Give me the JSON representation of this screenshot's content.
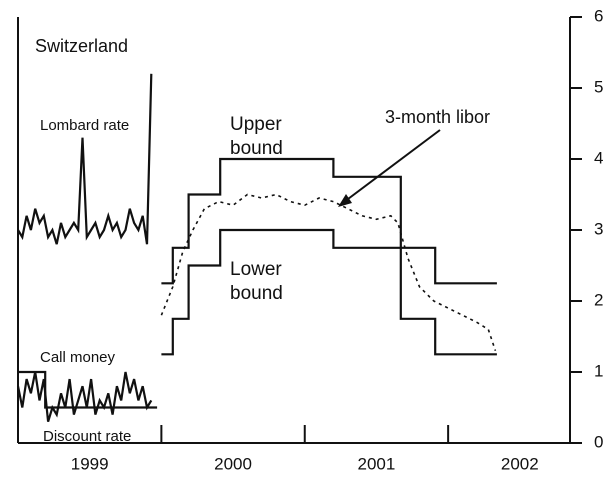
{
  "chart_data": {
    "type": "line",
    "xlim": [
      1999,
      2002.85
    ],
    "ylim": [
      0,
      6
    ],
    "yticks": [
      0,
      1,
      2,
      3,
      4,
      5,
      6
    ],
    "xticks": [
      {
        "value": 1999.5,
        "label": "1999"
      },
      {
        "value": 2000.5,
        "label": "2000"
      },
      {
        "value": 2001.5,
        "label": "2001"
      },
      {
        "value": 2002.5,
        "label": "2002"
      }
    ],
    "xminor": [
      2000,
      2001,
      2002
    ],
    "series": [
      {
        "color": "#111111",
        "dash": false,
        "x": [
          2000.0,
          2000.08,
          2000.08,
          2000.19,
          2000.19,
          2000.41,
          2000.41,
          2001.2,
          2001.2,
          2001.67,
          2001.67,
          2001.91,
          2001.91,
          2002.34
        ],
        "values": [
          2.25,
          2.25,
          2.75,
          2.75,
          3.5,
          3.5,
          4,
          4,
          3.75,
          3.75,
          2.75,
          2.75,
          2.25,
          2.25
        ]
      },
      {
        "color": "#111111",
        "dash": false,
        "x": [
          2000.0,
          2000.08,
          2000.08,
          2000.19,
          2000.19,
          2000.41,
          2000.41,
          2001.2,
          2001.2,
          2001.67,
          2001.67,
          2001.91,
          2001.91,
          2002.34
        ],
        "values": [
          1.25,
          1.25,
          1.75,
          1.75,
          2.5,
          2.5,
          3,
          3,
          2.75,
          2.75,
          1.75,
          1.75,
          1.25,
          1.25
        ]
      },
      {
        "color": "#111111",
        "dash": true,
        "x": [
          2000.0,
          2000.08,
          2000.15,
          2000.22,
          2000.3,
          2000.4,
          2000.5,
          2000.6,
          2000.7,
          2000.8,
          2000.9,
          2001.0,
          2001.1,
          2001.2,
          2001.3,
          2001.4,
          2001.5,
          2001.6,
          2001.65,
          2001.72,
          2001.8,
          2001.9,
          2002.0,
          2002.1,
          2002.2,
          2002.28,
          2002.33
        ],
        "values": [
          1.8,
          2.2,
          2.7,
          3.0,
          3.3,
          3.4,
          3.35,
          3.5,
          3.45,
          3.5,
          3.4,
          3.35,
          3.45,
          3.4,
          3.3,
          3.2,
          3.15,
          3.2,
          3.1,
          2.6,
          2.2,
          2.0,
          1.9,
          1.8,
          1.7,
          1.6,
          1.3
        ]
      },
      {
        "color": "#111111",
        "dash": false,
        "x": [
          1999.0,
          1999.03,
          1999.06,
          1999.09,
          1999.12,
          1999.15,
          1999.18,
          1999.21,
          1999.24,
          1999.27,
          1999.3,
          1999.33,
          1999.36,
          1999.39,
          1999.42,
          1999.45,
          1999.48,
          1999.51,
          1999.54,
          1999.57,
          1999.6,
          1999.63,
          1999.66,
          1999.69,
          1999.72,
          1999.75,
          1999.78,
          1999.81,
          1999.84,
          1999.87,
          1999.9,
          1999.93
        ],
        "values": [
          3.0,
          2.9,
          3.2,
          3.0,
          3.3,
          3.1,
          3.2,
          2.9,
          3.0,
          2.8,
          3.1,
          2.9,
          3.0,
          3.1,
          3.0,
          4.3,
          2.9,
          3.0,
          3.1,
          2.9,
          3.0,
          3.2,
          3.0,
          3.1,
          2.9,
          3.0,
          3.3,
          3.1,
          3.0,
          3.2,
          2.8,
          5.2
        ]
      },
      {
        "color": "#111111",
        "dash": false,
        "x": [
          1999.0,
          1999.03,
          1999.06,
          1999.09,
          1999.12,
          1999.15,
          1999.18,
          1999.21,
          1999.24,
          1999.27,
          1999.3,
          1999.33,
          1999.36,
          1999.39,
          1999.42,
          1999.45,
          1999.48,
          1999.51,
          1999.54,
          1999.57,
          1999.6,
          1999.63,
          1999.66,
          1999.69,
          1999.72,
          1999.75,
          1999.78,
          1999.81,
          1999.84,
          1999.87,
          1999.9,
          1999.93
        ],
        "values": [
          0.8,
          0.5,
          0.9,
          0.7,
          1.0,
          0.6,
          0.9,
          0.3,
          0.5,
          0.4,
          0.7,
          0.5,
          0.9,
          0.4,
          0.6,
          0.8,
          0.5,
          0.9,
          0.4,
          0.6,
          0.5,
          0.7,
          0.4,
          0.8,
          0.6,
          1.0,
          0.7,
          0.9,
          0.6,
          0.8,
          0.5,
          0.6
        ]
      },
      {
        "color": "#111111",
        "dash": false,
        "x": [
          1999.0,
          1999.19,
          1999.19,
          1999.97
        ],
        "values": [
          1,
          1,
          0.5,
          0.5
        ]
      }
    ],
    "annotations": [
      {
        "lines": [
          "Switzerland"
        ]
      },
      {
        "lines": [
          "Lombard rate"
        ]
      },
      {
        "lines": [
          "Upper",
          "bound"
        ]
      },
      {
        "lines": [
          "3-month libor"
        ]
      },
      {
        "lines": [
          "Lower",
          "bound"
        ]
      },
      {
        "lines": [
          "Call money"
        ]
      },
      {
        "lines": [
          "Discount rate"
        ]
      }
    ]
  }
}
